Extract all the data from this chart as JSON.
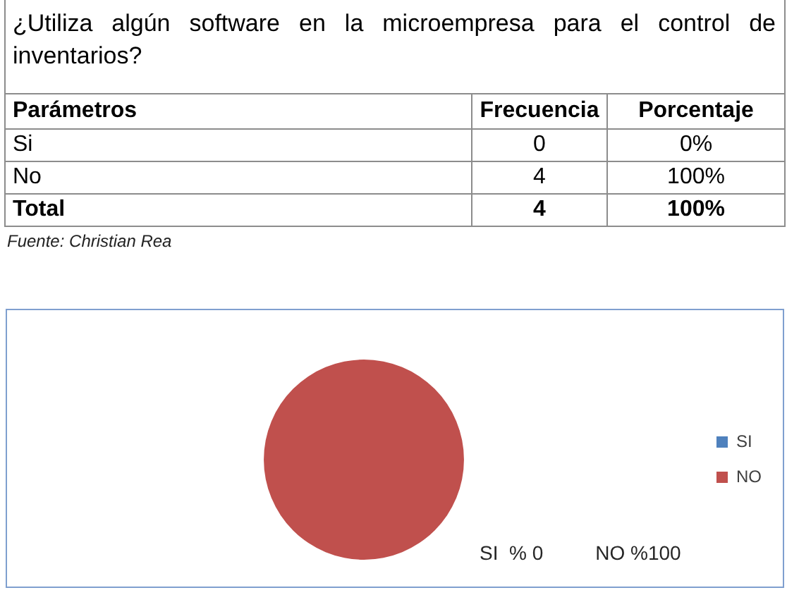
{
  "chart_data": [
    {
      "type": "other",
      "title": "¿Utiliza algún software en la microempresa para el control de inventarios?",
      "ylabel": "Parámetros",
      "categories": [
        "Si",
        "No",
        "Total"
      ],
      "series": [
        {
          "name": "Frecuencia",
          "values": [
            0,
            4,
            4
          ],
          "value_labels": [
            "0",
            "4",
            "4"
          ]
        },
        {
          "name": "Porcentaje",
          "values": [
            0,
            100,
            100
          ],
          "value_labels": [
            "0%",
            "100%",
            "100%"
          ]
        }
      ],
      "annotations": [
        "Fuente: Christian Rea"
      ]
    },
    {
      "type": "pie",
      "categories": [
        "SI",
        "NO"
      ],
      "values": [
        0,
        100
      ],
      "colors": [
        "#4f81bd",
        "#c0504d"
      ],
      "legend": "right",
      "annotations": [
        "SI  % 0",
        "NO %100"
      ]
    }
  ]
}
